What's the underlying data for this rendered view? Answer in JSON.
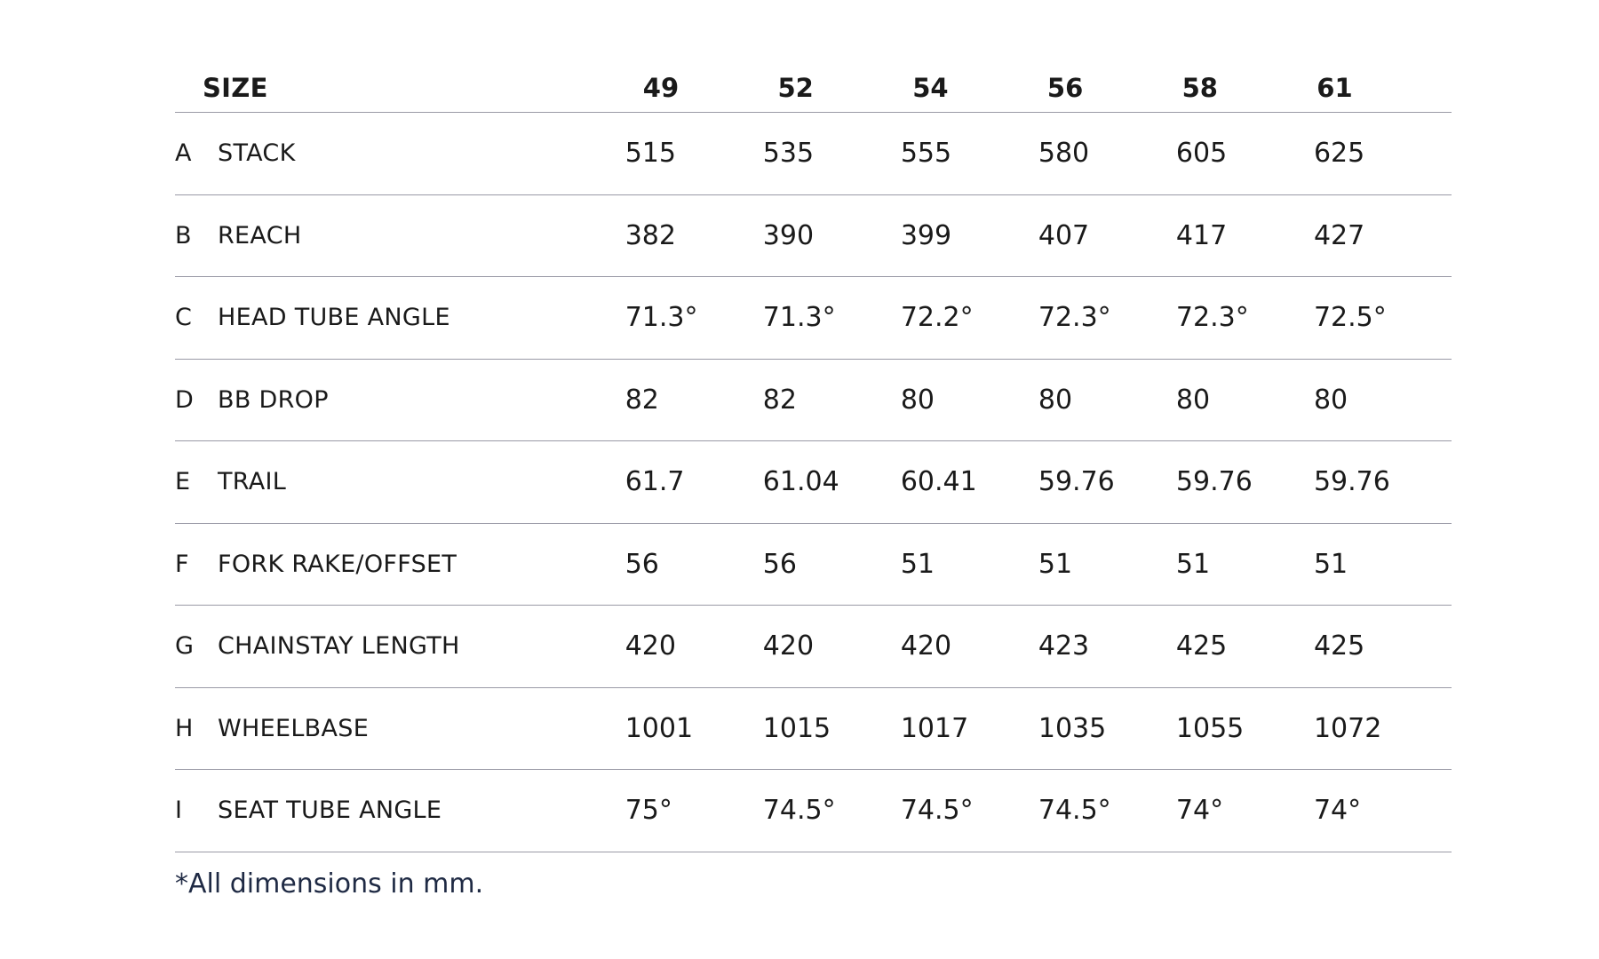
{
  "table": {
    "size_label": "SIZE",
    "sizes": [
      "49",
      "52",
      "54",
      "56",
      "58",
      "61"
    ],
    "rows": [
      {
        "letter": "A",
        "name": "STACK",
        "values": [
          "515",
          "535",
          "555",
          "580",
          "605",
          "625"
        ]
      },
      {
        "letter": "B",
        "name": "REACH",
        "values": [
          "382",
          "390",
          "399",
          "407",
          "417",
          "427"
        ]
      },
      {
        "letter": "C",
        "name": "HEAD TUBE ANGLE",
        "values": [
          "71.3°",
          "71.3°",
          "72.2°",
          "72.3°",
          "72.3°",
          "72.5°"
        ]
      },
      {
        "letter": "D",
        "name": "BB DROP",
        "values": [
          "82",
          "82",
          "80",
          "80",
          "80",
          "80"
        ]
      },
      {
        "letter": "E",
        "name": "TRAIL",
        "values": [
          "61.7",
          "61.04",
          "60.41",
          "59.76",
          "59.76",
          "59.76"
        ]
      },
      {
        "letter": "F",
        "name": "FORK RAKE/OFFSET",
        "values": [
          "56",
          "56",
          "51",
          "51",
          "51",
          "51"
        ]
      },
      {
        "letter": "G",
        "name": "CHAINSTAY LENGTH",
        "values": [
          "420",
          "420",
          "420",
          "423",
          "425",
          "425"
        ]
      },
      {
        "letter": "H",
        "name": "WHEELBASE",
        "values": [
          "1001",
          "1015",
          "1017",
          "1035",
          "1055",
          "1072"
        ]
      },
      {
        "letter": "I",
        "name": "SEAT TUBE ANGLE",
        "values": [
          "75°",
          "74.5°",
          "74.5°",
          "74.5°",
          "74°",
          "74°"
        ]
      }
    ]
  },
  "footnote": "*All dimensions in mm."
}
